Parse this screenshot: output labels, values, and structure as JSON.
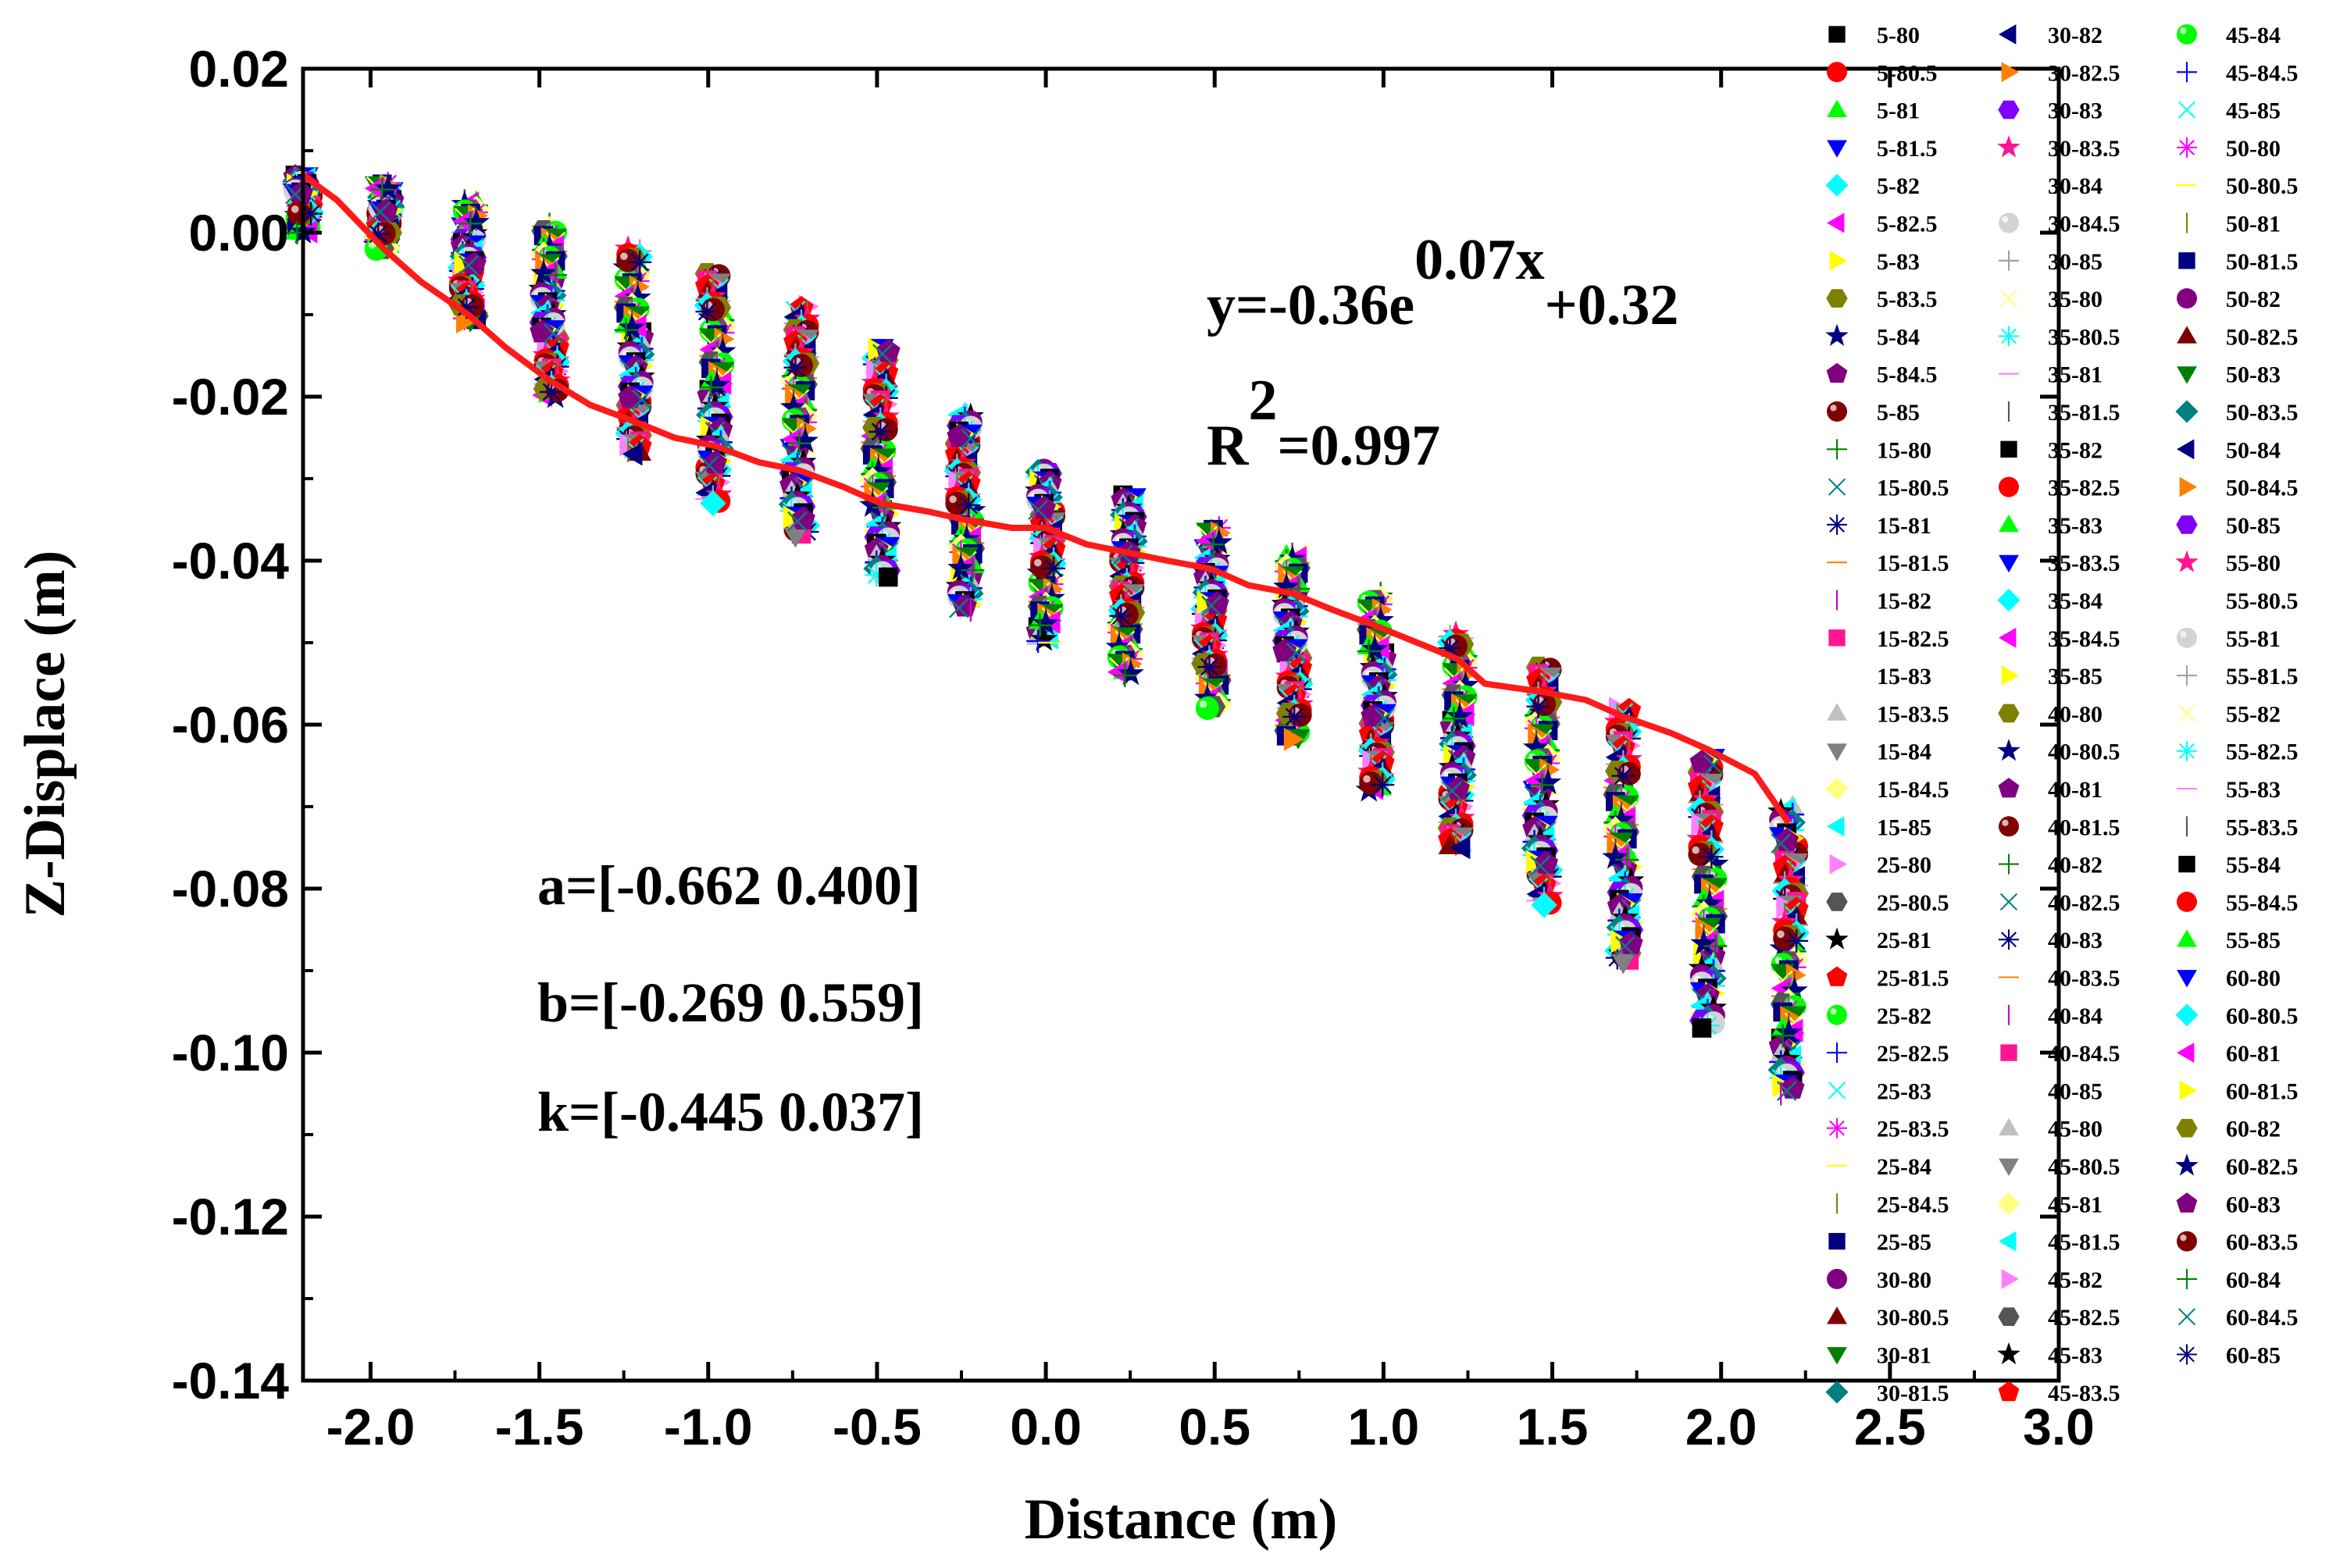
{
  "chart_data": {
    "type": "scatter",
    "xlabel": "Distance (m)",
    "ylabel": "Z-Displace (m)",
    "xlim": [
      -2.2,
      3.0
    ],
    "ylim": [
      -0.14,
      0.02
    ],
    "x_ticks": [
      "-2.0",
      "-1.5",
      "-1.0",
      "-0.5",
      "0.0",
      "0.5",
      "1.0",
      "1.5",
      "2.0",
      "2.5",
      "3.0"
    ],
    "y_ticks": [
      "0.02",
      "0.00",
      "-0.02",
      "-0.04",
      "-0.06",
      "-0.08",
      "-0.10",
      "-0.12",
      "-0.14"
    ],
    "x_stations": [
      -2.2,
      -1.96,
      -1.71,
      -1.47,
      -1.22,
      -0.98,
      -0.73,
      -0.49,
      -0.24,
      0.0,
      0.24,
      0.49,
      0.73,
      0.98,
      1.22,
      1.47,
      1.71,
      1.96,
      2.2
    ],
    "station_top": [
      0.007,
      0.006,
      0.004,
      0.001,
      -0.002,
      -0.005,
      -0.009,
      -0.014,
      -0.022,
      -0.029,
      -0.032,
      -0.036,
      -0.039,
      -0.044,
      -0.049,
      -0.053,
      -0.058,
      -0.064,
      -0.07
    ],
    "station_bottom": [
      0.0,
      -0.002,
      -0.011,
      -0.02,
      -0.027,
      -0.033,
      -0.037,
      -0.042,
      -0.046,
      -0.05,
      -0.054,
      -0.058,
      -0.062,
      -0.068,
      -0.075,
      -0.082,
      -0.089,
      -0.097,
      -0.105
    ],
    "fit_curve": {
      "name": "fit",
      "color": "#ff1a1a",
      "x": [
        -2.2,
        -2.1,
        -1.96,
        -1.85,
        -1.71,
        -1.6,
        -1.47,
        -1.35,
        -1.22,
        -1.1,
        -0.98,
        -0.85,
        -0.73,
        -0.6,
        -0.49,
        -0.35,
        -0.24,
        -0.1,
        0.0,
        0.12,
        0.24,
        0.36,
        0.49,
        0.6,
        0.73,
        0.85,
        0.98,
        1.1,
        1.22,
        1.3,
        1.47,
        1.6,
        1.71,
        1.85,
        1.96,
        2.1,
        2.2
      ],
      "y": [
        0.007,
        0.004,
        -0.002,
        -0.006,
        -0.01,
        -0.014,
        -0.018,
        -0.021,
        -0.023,
        -0.025,
        -0.026,
        -0.028,
        -0.029,
        -0.031,
        -0.033,
        -0.034,
        -0.035,
        -0.036,
        -0.036,
        -0.038,
        -0.039,
        -0.04,
        -0.041,
        -0.043,
        -0.044,
        -0.046,
        -0.048,
        -0.05,
        -0.052,
        -0.055,
        -0.056,
        -0.057,
        -0.059,
        -0.061,
        -0.063,
        -0.066,
        -0.072
      ]
    },
    "equation": {
      "prefix": "y=-0.36e",
      "exponent": "0.07x",
      "suffix": "+0.32"
    },
    "r_squared": {
      "prefix": "R",
      "exponent": "2",
      "suffix": "=0.997"
    },
    "annotations": [
      "a=[-0.662 0.400]",
      "b=[-0.269 0.559]",
      "k=[-0.445 0.037]"
    ],
    "series": [
      {
        "name": "5-80",
        "marker": "square",
        "color": "#000000"
      },
      {
        "name": "5-80.5",
        "marker": "circle",
        "color": "#ff0000"
      },
      {
        "name": "5-81",
        "marker": "triangle-up",
        "color": "#00ff00"
      },
      {
        "name": "5-81.5",
        "marker": "triangle-down",
        "color": "#0000ff"
      },
      {
        "name": "5-82",
        "marker": "diamond",
        "color": "#00ffff"
      },
      {
        "name": "5-82.5",
        "marker": "triangle-left",
        "color": "#ff00ff"
      },
      {
        "name": "5-83",
        "marker": "triangle-right",
        "color": "#ffff00"
      },
      {
        "name": "5-83.5",
        "marker": "hexagon",
        "color": "#808000"
      },
      {
        "name": "5-84",
        "marker": "star",
        "color": "#000080"
      },
      {
        "name": "5-84.5",
        "marker": "pentagon",
        "color": "#800080"
      },
      {
        "name": "5-85",
        "marker": "ball",
        "color": "#800000"
      },
      {
        "name": "15-80",
        "marker": "plus",
        "color": "#008000"
      },
      {
        "name": "15-80.5",
        "marker": "cross",
        "color": "#008080"
      },
      {
        "name": "15-81",
        "marker": "asterisk",
        "color": "#000080"
      },
      {
        "name": "15-81.5",
        "marker": "hline",
        "color": "#ff8000"
      },
      {
        "name": "15-82",
        "marker": "vline",
        "color": "#cc00cc"
      },
      {
        "name": "15-82.5",
        "marker": "square",
        "color": "#ff1493"
      },
      {
        "name": "15-83",
        "marker": "none",
        "color": "#000000"
      },
      {
        "name": "15-83.5",
        "marker": "triangle-up",
        "color": "#c0c0c0"
      },
      {
        "name": "15-84",
        "marker": "triangle-down",
        "color": "#808080"
      },
      {
        "name": "15-84.5",
        "marker": "diamond",
        "color": "#ffff80"
      },
      {
        "name": "15-85",
        "marker": "triangle-left",
        "color": "#00ffff"
      },
      {
        "name": "25-80",
        "marker": "triangle-right",
        "color": "#ff80ff"
      },
      {
        "name": "25-80.5",
        "marker": "hexagon",
        "color": "#555555"
      },
      {
        "name": "25-81",
        "marker": "star",
        "color": "#000000"
      },
      {
        "name": "25-81.5",
        "marker": "pentagon",
        "color": "#ff0000"
      },
      {
        "name": "25-82",
        "marker": "ball",
        "color": "#00ff00"
      },
      {
        "name": "25-82.5",
        "marker": "plus",
        "color": "#0000ff"
      },
      {
        "name": "25-83",
        "marker": "cross",
        "color": "#00ffff"
      },
      {
        "name": "25-83.5",
        "marker": "asterisk",
        "color": "#ff00ff"
      },
      {
        "name": "25-84",
        "marker": "hline",
        "color": "#ffff00"
      },
      {
        "name": "25-84.5",
        "marker": "vline",
        "color": "#808000"
      },
      {
        "name": "25-85",
        "marker": "square",
        "color": "#000080"
      },
      {
        "name": "30-80",
        "marker": "circle",
        "color": "#800080"
      },
      {
        "name": "30-80.5",
        "marker": "triangle-up",
        "color": "#800000"
      },
      {
        "name": "30-81",
        "marker": "triangle-down",
        "color": "#008000"
      },
      {
        "name": "30-81.5",
        "marker": "diamond",
        "color": "#008080"
      },
      {
        "name": "30-82",
        "marker": "triangle-left",
        "color": "#000080"
      },
      {
        "name": "30-82.5",
        "marker": "triangle-right",
        "color": "#ff8000"
      },
      {
        "name": "30-83",
        "marker": "hexagon",
        "color": "#8000ff"
      },
      {
        "name": "30-83.5",
        "marker": "star",
        "color": "#ff1493"
      },
      {
        "name": "30-84",
        "marker": "none",
        "color": "#000000"
      },
      {
        "name": "30-84.5",
        "marker": "ball",
        "color": "#d3d3d3"
      },
      {
        "name": "30-85",
        "marker": "plus",
        "color": "#a0a0a0"
      },
      {
        "name": "35-80",
        "marker": "cross",
        "color": "#ffff80"
      },
      {
        "name": "35-80.5",
        "marker": "asterisk",
        "color": "#00ffff"
      },
      {
        "name": "35-81",
        "marker": "hline",
        "color": "#ff80ff"
      },
      {
        "name": "35-81.5",
        "marker": "vline",
        "color": "#555555"
      },
      {
        "name": "35-82",
        "marker": "square",
        "color": "#000000"
      },
      {
        "name": "35-82.5",
        "marker": "circle",
        "color": "#ff0000"
      },
      {
        "name": "35-83",
        "marker": "triangle-up",
        "color": "#00ff00"
      },
      {
        "name": "35-83.5",
        "marker": "triangle-down",
        "color": "#0000ff"
      },
      {
        "name": "35-84",
        "marker": "diamond",
        "color": "#00ffff"
      },
      {
        "name": "35-84.5",
        "marker": "triangle-left",
        "color": "#ff00ff"
      },
      {
        "name": "35-85",
        "marker": "triangle-right",
        "color": "#ffff00"
      },
      {
        "name": "40-80",
        "marker": "hexagon",
        "color": "#808000"
      },
      {
        "name": "40-80.5",
        "marker": "star",
        "color": "#000080"
      },
      {
        "name": "40-81",
        "marker": "pentagon",
        "color": "#800080"
      },
      {
        "name": "40-81.5",
        "marker": "ball",
        "color": "#800000"
      },
      {
        "name": "40-82",
        "marker": "plus",
        "color": "#008000"
      },
      {
        "name": "40-82.5",
        "marker": "cross",
        "color": "#008080"
      },
      {
        "name": "40-83",
        "marker": "asterisk",
        "color": "#000080"
      },
      {
        "name": "40-83.5",
        "marker": "hline",
        "color": "#ff8000"
      },
      {
        "name": "40-84",
        "marker": "vline",
        "color": "#cc00cc"
      },
      {
        "name": "40-84.5",
        "marker": "square",
        "color": "#ff1493"
      },
      {
        "name": "40-85",
        "marker": "none",
        "color": "#000000"
      },
      {
        "name": "45-80",
        "marker": "triangle-up",
        "color": "#c0c0c0"
      },
      {
        "name": "45-80.5",
        "marker": "triangle-down",
        "color": "#808080"
      },
      {
        "name": "45-81",
        "marker": "diamond",
        "color": "#ffff80"
      },
      {
        "name": "45-81.5",
        "marker": "triangle-left",
        "color": "#00ffff"
      },
      {
        "name": "45-82",
        "marker": "triangle-right",
        "color": "#ff80ff"
      },
      {
        "name": "45-82.5",
        "marker": "hexagon",
        "color": "#555555"
      },
      {
        "name": "45-83",
        "marker": "star",
        "color": "#000000"
      },
      {
        "name": "45-83.5",
        "marker": "pentagon",
        "color": "#ff0000"
      },
      {
        "name": "45-84",
        "marker": "ball",
        "color": "#00ff00"
      },
      {
        "name": "45-84.5",
        "marker": "plus",
        "color": "#0000ff"
      },
      {
        "name": "45-85",
        "marker": "cross",
        "color": "#00ffff"
      },
      {
        "name": "50-80",
        "marker": "asterisk",
        "color": "#ff00ff"
      },
      {
        "name": "50-80.5",
        "marker": "hline",
        "color": "#ffff00"
      },
      {
        "name": "50-81",
        "marker": "vline",
        "color": "#808000"
      },
      {
        "name": "50-81.5",
        "marker": "square",
        "color": "#000080"
      },
      {
        "name": "50-82",
        "marker": "circle",
        "color": "#800080"
      },
      {
        "name": "50-82.5",
        "marker": "triangle-up",
        "color": "#800000"
      },
      {
        "name": "50-83",
        "marker": "triangle-down",
        "color": "#008000"
      },
      {
        "name": "50-83.5",
        "marker": "diamond",
        "color": "#008080"
      },
      {
        "name": "50-84",
        "marker": "triangle-left",
        "color": "#000080"
      },
      {
        "name": "50-84.5",
        "marker": "triangle-right",
        "color": "#ff8000"
      },
      {
        "name": "50-85",
        "marker": "hexagon",
        "color": "#8000ff"
      },
      {
        "name": "55-80",
        "marker": "star",
        "color": "#ff1493"
      },
      {
        "name": "55-80.5",
        "marker": "none",
        "color": "#000000"
      },
      {
        "name": "55-81",
        "marker": "ball",
        "color": "#d3d3d3"
      },
      {
        "name": "55-81.5",
        "marker": "plus",
        "color": "#a0a0a0"
      },
      {
        "name": "55-82",
        "marker": "cross",
        "color": "#ffff80"
      },
      {
        "name": "55-82.5",
        "marker": "asterisk",
        "color": "#00ffff"
      },
      {
        "name": "55-83",
        "marker": "hline",
        "color": "#ff80ff"
      },
      {
        "name": "55-83.5",
        "marker": "vline",
        "color": "#555555"
      },
      {
        "name": "55-84",
        "marker": "square",
        "color": "#000000"
      },
      {
        "name": "55-84.5",
        "marker": "circle",
        "color": "#ff0000"
      },
      {
        "name": "55-85",
        "marker": "triangle-up",
        "color": "#00ff00"
      },
      {
        "name": "60-80",
        "marker": "triangle-down",
        "color": "#0000ff"
      },
      {
        "name": "60-80.5",
        "marker": "diamond",
        "color": "#00ffff"
      },
      {
        "name": "60-81",
        "marker": "triangle-left",
        "color": "#ff00ff"
      },
      {
        "name": "60-81.5",
        "marker": "triangle-right",
        "color": "#ffff00"
      },
      {
        "name": "60-82",
        "marker": "hexagon",
        "color": "#808000"
      },
      {
        "name": "60-82.5",
        "marker": "star",
        "color": "#000080"
      },
      {
        "name": "60-83",
        "marker": "pentagon",
        "color": "#800080"
      },
      {
        "name": "60-83.5",
        "marker": "ball",
        "color": "#800000"
      },
      {
        "name": "60-84",
        "marker": "plus",
        "color": "#008000"
      },
      {
        "name": "60-84.5",
        "marker": "cross",
        "color": "#008080"
      },
      {
        "name": "60-85",
        "marker": "asterisk",
        "color": "#000080"
      }
    ]
  }
}
